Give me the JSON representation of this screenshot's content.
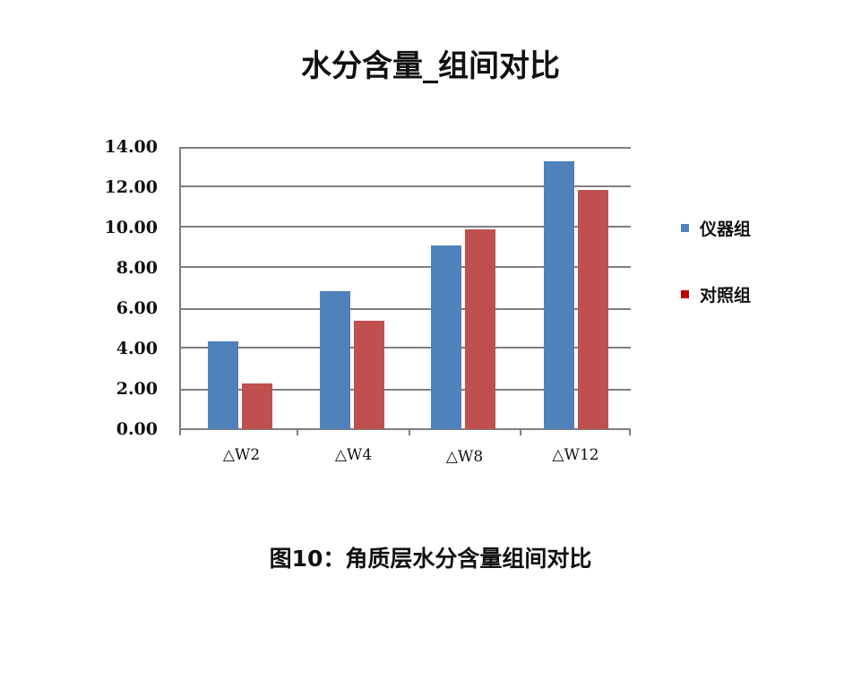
{
  "title": "水分含量_组间对比",
  "caption": "图10：角质层水分含量组间对比",
  "legend": [
    {
      "label": "仪器组",
      "color": "#4f81bd"
    },
    {
      "label": "对照组",
      "color": "#c0504d"
    }
  ],
  "legend_swatch_colors": [
    "#4f81bd",
    "#c00000"
  ],
  "y_ticks": [
    "14.00",
    "12.00",
    "10.00",
    "8.00",
    "6.00",
    "4.00",
    "2.00",
    "0.00"
  ],
  "x_labels": [
    "△W2",
    "△W4",
    "△W8",
    "△W12"
  ],
  "chart_data": {
    "type": "bar",
    "title": "水分含量_组间对比",
    "xlabel": "",
    "ylabel": "",
    "categories": [
      "△W2",
      "△W4",
      "△W8",
      "△W12"
    ],
    "series": [
      {
        "name": "仪器组",
        "color": "#4f81bd",
        "values": [
          4.35,
          6.85,
          9.1,
          13.3
        ]
      },
      {
        "name": "对照组",
        "color": "#c0504d",
        "values": [
          2.25,
          5.4,
          9.9,
          11.85
        ]
      }
    ],
    "ylim": [
      0,
      14
    ],
    "y_ticks": [
      0,
      2,
      4,
      6,
      8,
      10,
      12,
      14
    ],
    "y_tick_format": "0.00",
    "grid": true,
    "legend_position": "right",
    "caption": "图10：角质层水分含量组间对比"
  }
}
